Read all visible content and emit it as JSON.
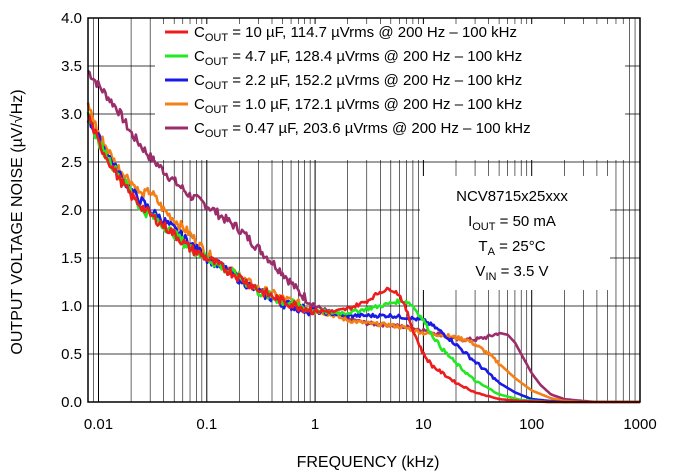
{
  "chart_data": {
    "type": "line",
    "xscale": "log",
    "xlim": [
      0.008,
      1000
    ],
    "ylim": [
      0,
      4.0
    ],
    "xlabel": "FREQUENCY (kHz)",
    "ylabel": "OUTPUT VOLTAGE NOISE (µV/√Hz)",
    "xticks": [
      {
        "v": 0.01,
        "label": "0.01"
      },
      {
        "v": 0.1,
        "label": "0.1"
      },
      {
        "v": 1,
        "label": "1"
      },
      {
        "v": 10,
        "label": "10"
      },
      {
        "v": 100,
        "label": "100"
      },
      {
        "v": 1000,
        "label": "1000"
      }
    ],
    "yticks": [
      {
        "v": 0,
        "label": "0.0"
      },
      {
        "v": 0.5,
        "label": "0.5"
      },
      {
        "v": 1.0,
        "label": "1.0"
      },
      {
        "v": 1.5,
        "label": "1.5"
      },
      {
        "v": 2.0,
        "label": "2.0"
      },
      {
        "v": 2.5,
        "label": "2.5"
      },
      {
        "v": 3.0,
        "label": "3.0"
      },
      {
        "v": 3.5,
        "label": "3.5"
      },
      {
        "v": 4.0,
        "label": "4.0"
      }
    ],
    "grid": true,
    "legend_position": "top-right",
    "annotation": {
      "device": "NCV8715x25xxx",
      "iout": {
        "main": "I",
        "sub": "OUT",
        "rest": " = 50 mA"
      },
      "ta": {
        "main": "T",
        "sub": "A",
        "rest": " = 25°C"
      },
      "vin": {
        "main": "V",
        "sub": "IN",
        "rest": " = 3.5 V"
      }
    },
    "series": [
      {
        "name_main": "C",
        "name_sub": "OUT",
        "name_rest": " = 10 µF, 114.7 µVrms @ 200 Hz – 100 kHz",
        "color": "#ee1c1c",
        "points": [
          [
            0.008,
            3.0
          ],
          [
            0.01,
            2.7
          ],
          [
            0.015,
            2.35
          ],
          [
            0.02,
            2.15
          ],
          [
            0.03,
            1.95
          ],
          [
            0.05,
            1.75
          ],
          [
            0.07,
            1.6
          ],
          [
            0.1,
            1.5
          ],
          [
            0.15,
            1.38
          ],
          [
            0.2,
            1.3
          ],
          [
            0.3,
            1.17
          ],
          [
            0.5,
            1.05
          ],
          [
            0.7,
            1.0
          ],
          [
            1,
            0.95
          ],
          [
            1.5,
            0.94
          ],
          [
            2,
            0.97
          ],
          [
            3,
            1.05
          ],
          [
            4,
            1.15
          ],
          [
            5,
            1.18
          ],
          [
            6,
            1.12
          ],
          [
            7,
            0.95
          ],
          [
            8,
            0.75
          ],
          [
            10,
            0.5
          ],
          [
            12,
            0.38
          ],
          [
            15,
            0.3
          ],
          [
            20,
            0.2
          ],
          [
            30,
            0.1
          ],
          [
            50,
            0.03
          ],
          [
            80,
            0.01
          ],
          [
            150,
            0.0
          ],
          [
            1000,
            0.0
          ]
        ]
      },
      {
        "name_main": "C",
        "name_sub": "OUT",
        "name_rest": " = 4.7 µF, 128.4 µVrms @ 200 Hz – 100 kHz",
        "color": "#22e822",
        "points": [
          [
            0.008,
            3.0
          ],
          [
            0.01,
            2.7
          ],
          [
            0.015,
            2.38
          ],
          [
            0.02,
            2.2
          ],
          [
            0.025,
            2.0
          ],
          [
            0.03,
            1.95
          ],
          [
            0.05,
            1.75
          ],
          [
            0.07,
            1.6
          ],
          [
            0.1,
            1.5
          ],
          [
            0.15,
            1.38
          ],
          [
            0.2,
            1.3
          ],
          [
            0.3,
            1.15
          ],
          [
            0.5,
            1.05
          ],
          [
            0.7,
            1.0
          ],
          [
            1,
            0.95
          ],
          [
            1.5,
            0.93
          ],
          [
            2,
            0.93
          ],
          [
            3,
            0.97
          ],
          [
            4,
            1.0
          ],
          [
            5,
            1.03
          ],
          [
            6,
            1.05
          ],
          [
            7,
            1.05
          ],
          [
            8,
            1.0
          ],
          [
            10,
            0.85
          ],
          [
            12,
            0.7
          ],
          [
            15,
            0.55
          ],
          [
            20,
            0.4
          ],
          [
            30,
            0.22
          ],
          [
            50,
            0.08
          ],
          [
            80,
            0.02
          ],
          [
            150,
            0.0
          ],
          [
            1000,
            0.0
          ]
        ]
      },
      {
        "name_main": "C",
        "name_sub": "OUT",
        "name_rest": " = 2.2 µF, 152.2 µVrms @ 200 Hz – 100 kHz",
        "color": "#1a1ae6",
        "points": [
          [
            0.008,
            2.95
          ],
          [
            0.01,
            2.75
          ],
          [
            0.015,
            2.4
          ],
          [
            0.02,
            2.2
          ],
          [
            0.03,
            2.0
          ],
          [
            0.05,
            1.8
          ],
          [
            0.07,
            1.65
          ],
          [
            0.1,
            1.5
          ],
          [
            0.15,
            1.38
          ],
          [
            0.2,
            1.28
          ],
          [
            0.3,
            1.15
          ],
          [
            0.5,
            1.03
          ],
          [
            0.7,
            0.98
          ],
          [
            1,
            0.94
          ],
          [
            1.5,
            0.92
          ],
          [
            2,
            0.9
          ],
          [
            3,
            0.9
          ],
          [
            5,
            0.9
          ],
          [
            7,
            0.88
          ],
          [
            10,
            0.85
          ],
          [
            12,
            0.8
          ],
          [
            15,
            0.72
          ],
          [
            20,
            0.6
          ],
          [
            25,
            0.5
          ],
          [
            30,
            0.42
          ],
          [
            40,
            0.3
          ],
          [
            50,
            0.2
          ],
          [
            70,
            0.1
          ],
          [
            100,
            0.03
          ],
          [
            150,
            0.01
          ],
          [
            200,
            0.0
          ],
          [
            1000,
            0.0
          ]
        ]
      },
      {
        "name_main": "C",
        "name_sub": "OUT",
        "name_rest": " = 1.0 µF, 172.1 µVrms @ 200 Hz – 100 kHz",
        "color": "#f57f17",
        "points": [
          [
            0.008,
            3.1
          ],
          [
            0.01,
            2.8
          ],
          [
            0.015,
            2.45
          ],
          [
            0.02,
            2.3
          ],
          [
            0.025,
            2.15
          ],
          [
            0.03,
            2.2
          ],
          [
            0.04,
            2.0
          ],
          [
            0.05,
            1.9
          ],
          [
            0.07,
            1.75
          ],
          [
            0.1,
            1.55
          ],
          [
            0.15,
            1.4
          ],
          [
            0.2,
            1.3
          ],
          [
            0.3,
            1.18
          ],
          [
            0.5,
            1.08
          ],
          [
            0.7,
            1.02
          ],
          [
            1,
            0.95
          ],
          [
            1.5,
            0.9
          ],
          [
            2,
            0.85
          ],
          [
            3,
            0.82
          ],
          [
            5,
            0.8
          ],
          [
            7,
            0.77
          ],
          [
            10,
            0.72
          ],
          [
            15,
            0.7
          ],
          [
            20,
            0.67
          ],
          [
            25,
            0.65
          ],
          [
            30,
            0.6
          ],
          [
            40,
            0.5
          ],
          [
            50,
            0.4
          ],
          [
            70,
            0.25
          ],
          [
            100,
            0.12
          ],
          [
            150,
            0.04
          ],
          [
            200,
            0.01
          ],
          [
            300,
            0.0
          ],
          [
            1000,
            0.0
          ]
        ]
      },
      {
        "name_main": "C",
        "name_sub": "OUT",
        "name_rest": " = 0.47 µF, 203.6 µVrms @ 200 Hz – 100 kHz",
        "color": "#9b2d6a",
        "points": [
          [
            0.008,
            3.45
          ],
          [
            0.01,
            3.3
          ],
          [
            0.015,
            3.05
          ],
          [
            0.02,
            2.8
          ],
          [
            0.03,
            2.55
          ],
          [
            0.05,
            2.3
          ],
          [
            0.07,
            2.15
          ],
          [
            0.1,
            2.05
          ],
          [
            0.15,
            1.9
          ],
          [
            0.2,
            1.8
          ],
          [
            0.3,
            1.6
          ],
          [
            0.5,
            1.35
          ],
          [
            0.7,
            1.15
          ],
          [
            1,
            1.0
          ],
          [
            1.5,
            0.92
          ],
          [
            2,
            0.87
          ],
          [
            3,
            0.82
          ],
          [
            5,
            0.8
          ],
          [
            7,
            0.78
          ],
          [
            10,
            0.75
          ],
          [
            15,
            0.7
          ],
          [
            20,
            0.65
          ],
          [
            30,
            0.65
          ],
          [
            40,
            0.68
          ],
          [
            50,
            0.72
          ],
          [
            60,
            0.7
          ],
          [
            70,
            0.62
          ],
          [
            80,
            0.5
          ],
          [
            100,
            0.3
          ],
          [
            120,
            0.18
          ],
          [
            150,
            0.08
          ],
          [
            200,
            0.03
          ],
          [
            300,
            0.01
          ],
          [
            400,
            0.0
          ],
          [
            1000,
            0.0
          ]
        ]
      }
    ]
  }
}
